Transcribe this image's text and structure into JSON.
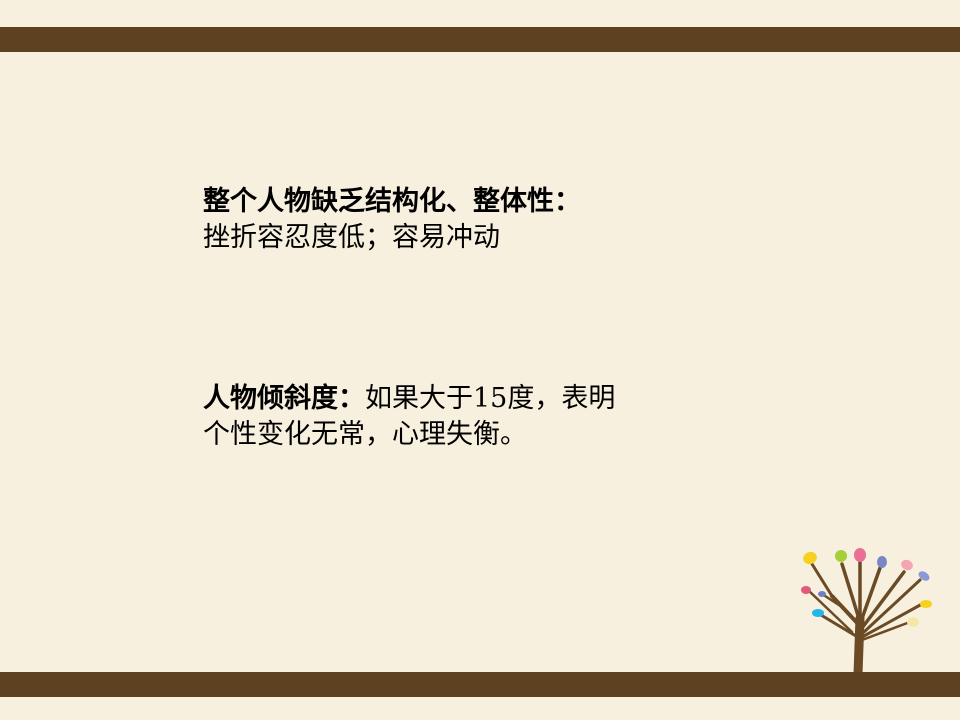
{
  "slide": {
    "section1": {
      "heading": "整个人物缺乏结构化、整体性：",
      "line2": "挫折容忍度低；容易冲动"
    },
    "section2": {
      "heading": "人物倾斜度：",
      "line1_rest": "如果大于15度，表明",
      "line2": "个性变化无常，心理失衡。"
    }
  },
  "colors": {
    "background": "#f8f0df",
    "band": "#5e4120",
    "tree_trunk": "#6b4a26",
    "leaves": [
      "#f6d21f",
      "#a6cf3a",
      "#ea6f95",
      "#7a86c8",
      "#8a9ad6",
      "#f2a6b4",
      "#6f7fc4",
      "#f6d21f",
      "#e05a7c",
      "#22b7e6",
      "#f4e7a8"
    ]
  },
  "decor": {
    "bands": "top-and-bottom",
    "illustration": "tree-icon"
  }
}
